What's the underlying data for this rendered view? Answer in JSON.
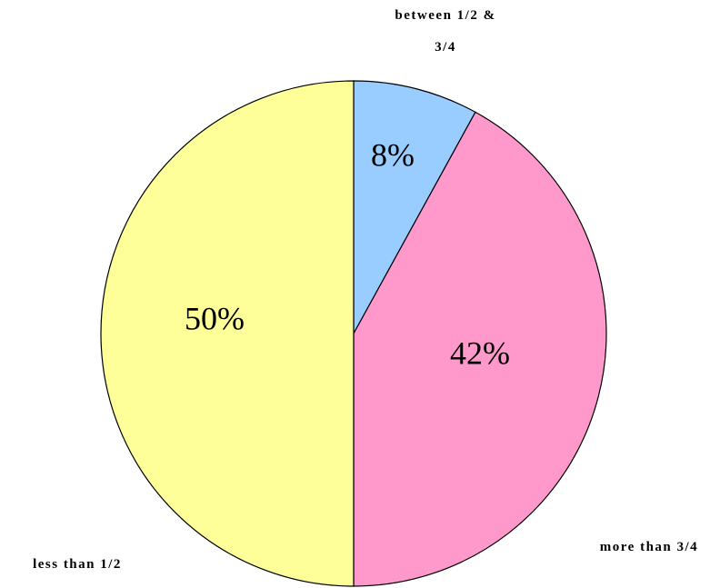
{
  "chart_data": {
    "type": "pie",
    "categories": [
      "between 1/2 & 3/4",
      "more than 3/4",
      "less than 1/2"
    ],
    "values": [
      8,
      42,
      50
    ],
    "value_labels": [
      "8%",
      "42%",
      "50%"
    ],
    "colors": [
      "#99ccff",
      "#ff99cc",
      "#ffff99"
    ]
  }
}
